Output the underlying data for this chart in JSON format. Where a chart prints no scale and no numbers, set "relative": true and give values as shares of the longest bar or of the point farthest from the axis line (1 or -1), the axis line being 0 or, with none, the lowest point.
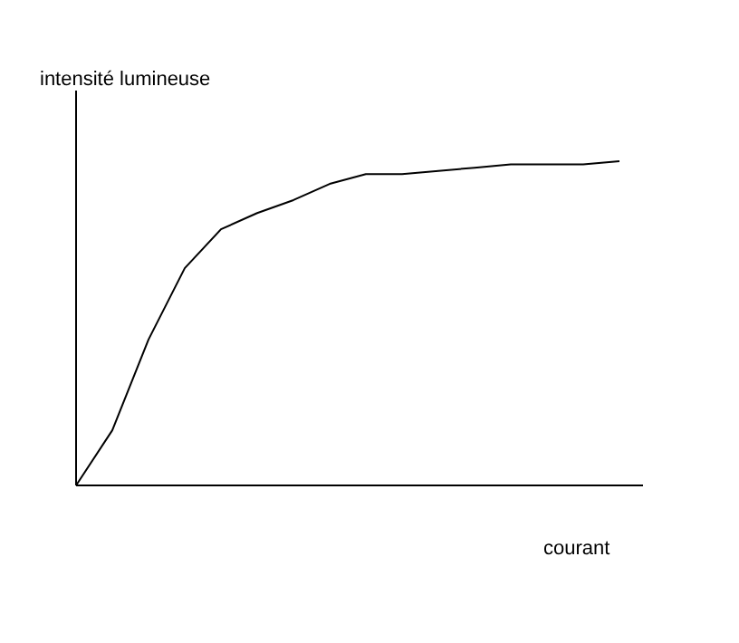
{
  "chart_data": {
    "type": "line",
    "relative": true,
    "xlabel": "courant",
    "ylabel": "intensité lumineuse",
    "categories": [
      null,
      null,
      null,
      null,
      null,
      null,
      null,
      null,
      null,
      null,
      null,
      null,
      null,
      null,
      null,
      null
    ],
    "series": [
      {
        "color": "#000000",
        "values": [
          0,
          0.17,
          0.45,
          0.67,
          0.79,
          0.84,
          0.88,
          0.93,
          0.96,
          0.96,
          0.97,
          0.98,
          0.99,
          0.99,
          0.99,
          1
        ]
      }
    ],
    "line_style": "solid"
  }
}
